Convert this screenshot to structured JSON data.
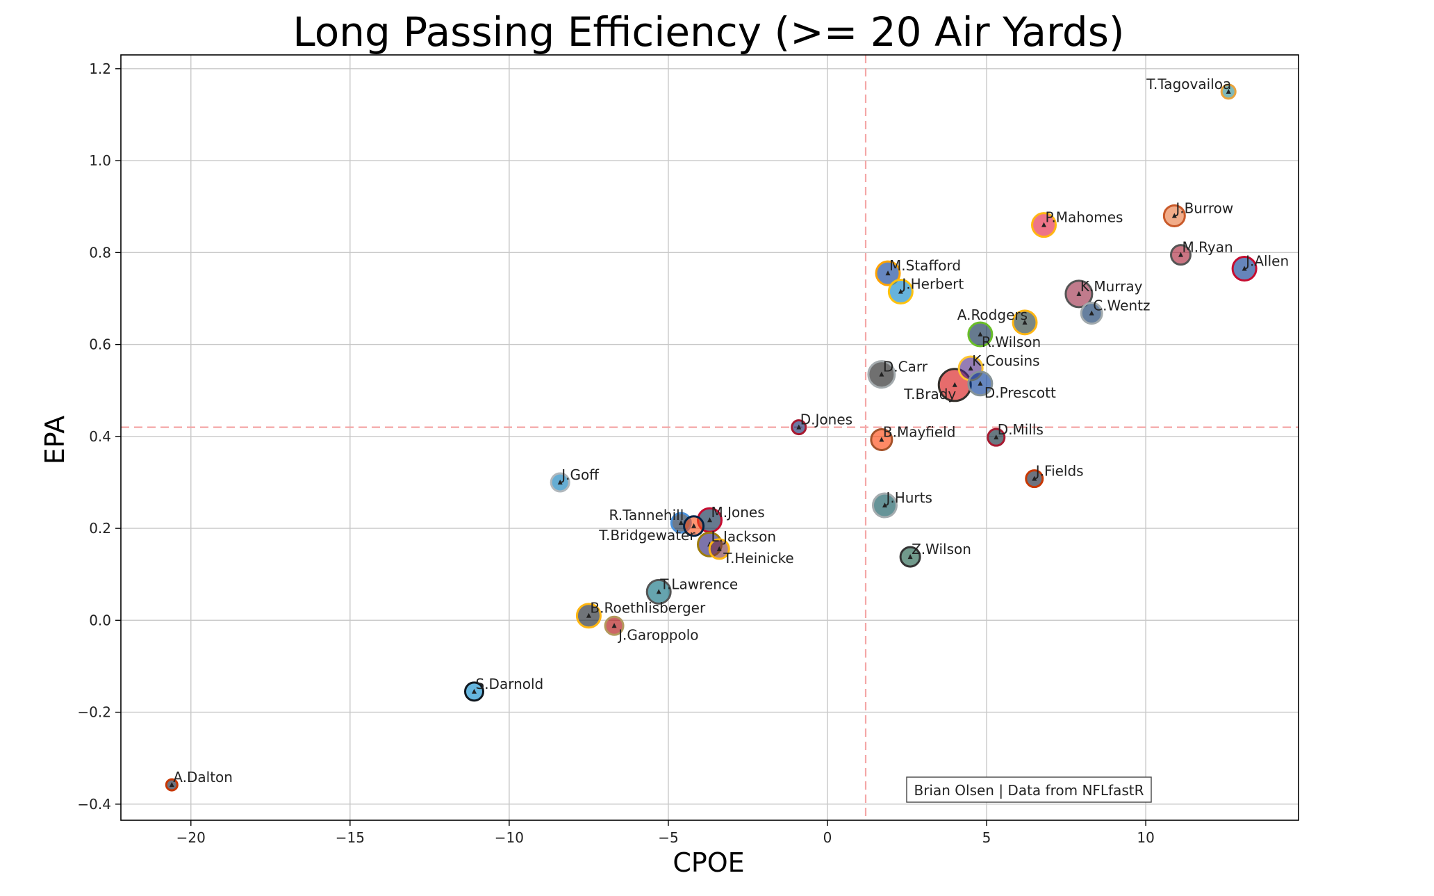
{
  "chart_data": {
    "type": "scatter",
    "title": "Long Passing Efficiency (>= 20 Air Yards)",
    "xlabel": "CPOE",
    "ylabel": "EPA",
    "xlim": [
      -22.2,
      14.8
    ],
    "ylim": [
      -0.435,
      1.23
    ],
    "xticks": [
      -20,
      -15,
      -10,
      -5,
      0,
      5,
      10
    ],
    "xtick_labels": [
      "−20",
      "−15",
      "−10",
      "−5",
      "0",
      "5",
      "10"
    ],
    "yticks": [
      -0.4,
      -0.2,
      0.0,
      0.2,
      0.4,
      0.6,
      0.8,
      1.0,
      1.2
    ],
    "ytick_labels": [
      "−0.4",
      "−0.2",
      "0.0",
      "0.2",
      "0.4",
      "0.6",
      "0.8",
      "1.0",
      "1.2"
    ],
    "grid": true,
    "reference_lines": {
      "x": 1.2,
      "y": 0.42,
      "color": "#f4a6a6"
    },
    "credit": "Brian Olsen | Data from NFLfastR",
    "points": [
      {
        "name": "T.Tagovailoa",
        "x": 12.6,
        "y": 1.15,
        "size": 10,
        "fill": "#2a8a8a",
        "edge": "#e8a33d",
        "label_pos": "left"
      },
      {
        "name": "J.Burrow",
        "x": 10.9,
        "y": 0.88,
        "size": 15,
        "fill": "#e8743b",
        "edge": "#c95a2a",
        "label_pos": "right"
      },
      {
        "name": "P.Mahomes",
        "x": 6.8,
        "y": 0.86,
        "size": 17,
        "fill": "#e31837",
        "edge": "#ffb612",
        "label_pos": "right"
      },
      {
        "name": "M.Ryan",
        "x": 11.1,
        "y": 0.795,
        "size": 14,
        "fill": "#a71930",
        "edge": "#555555",
        "label_pos": "right"
      },
      {
        "name": "J.Allen",
        "x": 13.1,
        "y": 0.765,
        "size": 17,
        "fill": "#00338d",
        "edge": "#c60c30",
        "label_pos": "right"
      },
      {
        "name": "M.Stafford",
        "x": 1.9,
        "y": 0.755,
        "size": 17,
        "fill": "#003594",
        "edge": "#ffa300",
        "label_pos": "right"
      },
      {
        "name": "J.Herbert",
        "x": 2.3,
        "y": 0.715,
        "size": 17,
        "fill": "#0080c6",
        "edge": "#ffc20e",
        "label_pos": "right"
      },
      {
        "name": "K.Murray",
        "x": 7.9,
        "y": 0.71,
        "size": 19,
        "fill": "#97233f",
        "edge": "#555555",
        "label_pos": "right"
      },
      {
        "name": "C.Wentz",
        "x": 8.3,
        "y": 0.668,
        "size": 15,
        "fill": "#002c5f",
        "edge": "#a2aaad",
        "label_pos": "right"
      },
      {
        "name": "A.Rodgers",
        "x": 6.2,
        "y": 0.648,
        "size": 17,
        "fill": "#203731",
        "edge": "#ffb612",
        "label_pos": "left"
      },
      {
        "name": "R.Wilson",
        "x": 4.8,
        "y": 0.622,
        "size": 17,
        "fill": "#002244",
        "edge": "#69be28",
        "label_pos": "below"
      },
      {
        "name": "K.Cousins",
        "x": 4.5,
        "y": 0.548,
        "size": 17,
        "fill": "#4f2683",
        "edge": "#ffc62f",
        "label_pos": "right"
      },
      {
        "name": "D.Carr",
        "x": 1.7,
        "y": 0.535,
        "size": 19,
        "fill": "#111111",
        "edge": "#a5acaf",
        "label_pos": "right"
      },
      {
        "name": "D.Prescott",
        "x": 4.8,
        "y": 0.515,
        "size": 17,
        "fill": "#003594",
        "edge": "#869397",
        "label_pos": "below-right"
      },
      {
        "name": "T.Brady",
        "x": 4.0,
        "y": 0.512,
        "size": 23,
        "fill": "#d50a0a",
        "edge": "#34302b",
        "label_pos": "left-below"
      },
      {
        "name": "D.Jones",
        "x": -0.9,
        "y": 0.42,
        "size": 10,
        "fill": "#0b2265",
        "edge": "#a71930",
        "label_pos": "right"
      },
      {
        "name": "B.Mayfield",
        "x": 1.7,
        "y": 0.393,
        "size": 15,
        "fill": "#ff3c00",
        "edge": "#a5532b",
        "label_pos": "right"
      },
      {
        "name": "D.Mills",
        "x": 5.3,
        "y": 0.398,
        "size": 12,
        "fill": "#03202f",
        "edge": "#a71930",
        "label_pos": "right"
      },
      {
        "name": "J.Fields",
        "x": 6.5,
        "y": 0.308,
        "size": 12,
        "fill": "#0b162a",
        "edge": "#c83803",
        "label_pos": "right"
      },
      {
        "name": "J.Goff",
        "x": -8.4,
        "y": 0.3,
        "size": 13,
        "fill": "#0076b6",
        "edge": "#b0b7bc",
        "label_pos": "right"
      },
      {
        "name": "J.Hurts",
        "x": 1.8,
        "y": 0.25,
        "size": 17,
        "fill": "#004c54",
        "edge": "#a5acaf",
        "label_pos": "right"
      },
      {
        "name": "R.Tannehill",
        "x": -4.6,
        "y": 0.212,
        "size": 14,
        "fill": "#0c2340",
        "edge": "#4b92db",
        "label_pos": "left"
      },
      {
        "name": "T.Bridgewater",
        "x": -4.2,
        "y": 0.205,
        "size": 14,
        "fill": "#fb4f14",
        "edge": "#002244",
        "label_pos": "left-below"
      },
      {
        "name": "M.Jones",
        "x": -3.7,
        "y": 0.218,
        "size": 17,
        "fill": "#002244",
        "edge": "#c60c30",
        "label_pos": "right"
      },
      {
        "name": "L.Jackson",
        "x": -3.7,
        "y": 0.165,
        "size": 17,
        "fill": "#241773",
        "edge": "#9e7c0c",
        "label_pos": "right"
      },
      {
        "name": "T.Heinicke",
        "x": -3.4,
        "y": 0.155,
        "size": 14,
        "fill": "#773141",
        "edge": "#ffb612",
        "label_pos": "below-right"
      },
      {
        "name": "Z.Wilson",
        "x": 2.6,
        "y": 0.138,
        "size": 14,
        "fill": "#125740",
        "edge": "#333333",
        "label_pos": "right"
      },
      {
        "name": "T.Lawrence",
        "x": -5.3,
        "y": 0.062,
        "size": 17,
        "fill": "#006778",
        "edge": "#555555",
        "label_pos": "right"
      },
      {
        "name": "B.Roethlisberger",
        "x": -7.5,
        "y": 0.01,
        "size": 17,
        "fill": "#101820",
        "edge": "#ffb612",
        "label_pos": "right"
      },
      {
        "name": "J.Garoppolo",
        "x": -6.7,
        "y": -0.012,
        "size": 13,
        "fill": "#aa0000",
        "edge": "#b3995d",
        "label_pos": "below-right"
      },
      {
        "name": "S.Darnold",
        "x": -11.1,
        "y": -0.155,
        "size": 13,
        "fill": "#0085ca",
        "edge": "#101820",
        "label_pos": "right"
      },
      {
        "name": "A.Dalton",
        "x": -20.6,
        "y": -0.358,
        "size": 8,
        "fill": "#0b162a",
        "edge": "#c83803",
        "label_pos": "right"
      }
    ]
  }
}
